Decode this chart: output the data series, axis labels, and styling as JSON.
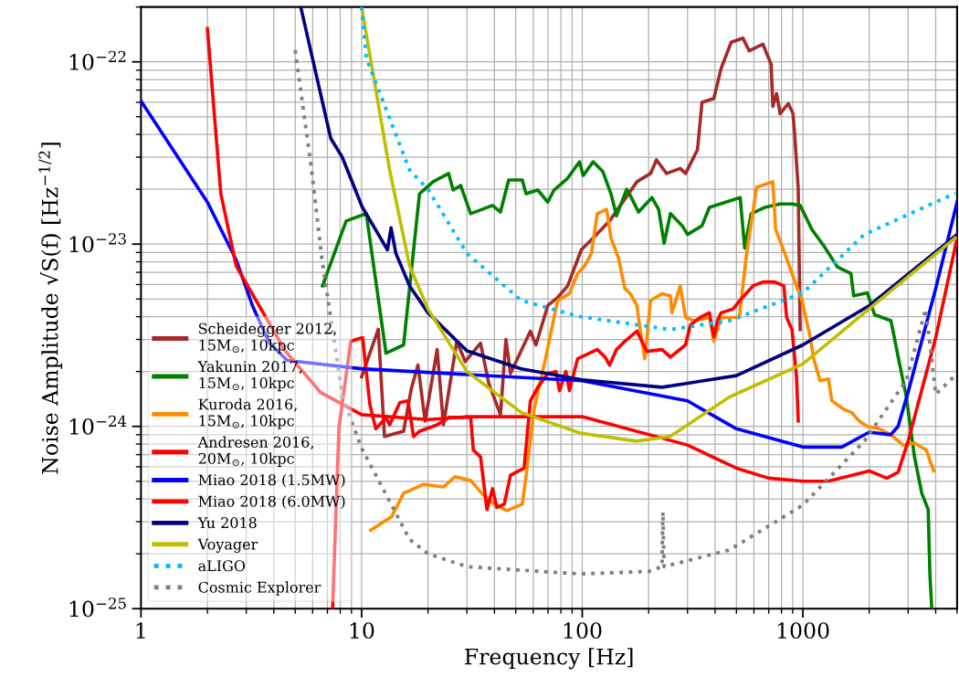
{
  "chart_data": {
    "type": "line",
    "xlabel": "Frequency [Hz]",
    "ylabel": "Noise Amplitude √S(f) [Hz$^{−1/2}$]",
    "log": "xy",
    "grid": true,
    "legend": "bottom left",
    "xlim": [
      1,
      5000
    ],
    "ylim": [
      1e-25,
      2e-22
    ],
    "xticks": [
      1,
      10,
      100,
      1000
    ],
    "yticks": [
      {
        "value": 1e-25,
        "label": "10$^{−25}$"
      },
      {
        "value": 1e-24,
        "label": "10$^{−24}$"
      },
      {
        "value": 1e-23,
        "label": "10$^{−23}$"
      },
      {
        "value": 1e-22,
        "label": "10$^{−22}$"
      }
    ],
    "series": [
      {
        "name": "Scheidegger 2012,\n15M$_{⊙}$, 10kpc",
        "color": "#a52a2a",
        "line_style": "solid",
        "x": [
          10.0,
          11.9,
          12.7,
          15.5,
          16.8,
          18.0,
          19.4,
          22.0,
          23.5,
          27.0,
          29.5,
          34.6,
          37.7,
          42.6,
          45.1,
          47.3,
          58.2,
          61.7,
          69.8,
          77.4,
          85.9,
          99,
          112,
          133,
          177,
          204,
          217,
          241,
          278,
          294,
          333,
          349,
          395,
          426,
          473,
          535,
          571,
          659,
          718,
          731,
          760,
          789,
          859,
          902,
          918,
          953,
          972
        ],
        "values": [
          1.87e-24,
          3.41e-24,
          8.8e-25,
          9.4e-25,
          1.61e-24,
          2.17e-24,
          1.07e-24,
          2.64e-24,
          1.02e-24,
          2.93e-24,
          2.27e-24,
          2.86e-24,
          1.72e-24,
          1.16e-24,
          3e-24,
          1.95e-24,
          3.33e-24,
          2.8e-24,
          4.6e-24,
          5.1e-24,
          5.9e-24,
          9.3e-24,
          1.08e-23,
          1.34e-23,
          2.2e-23,
          2.44e-23,
          2.9e-23,
          2.44e-23,
          2.6e-23,
          2.44e-23,
          3.3e-23,
          6e-23,
          6.3e-23,
          9.2e-23,
          1.28e-22,
          1.35e-22,
          1.15e-22,
          1.25e-22,
          9.7e-23,
          5.7e-23,
          6.7e-23,
          5.2e-23,
          5.9e-23,
          5.2e-23,
          4e-23,
          2e-23,
          3.4e-24
        ]
      },
      {
        "name": "Yakunin 2017,\n15M$_{⊙}$, 10kpc",
        "color": "#008000",
        "line_style": "solid",
        "x": [
          6.65,
          8.51,
          10.5,
          12.9,
          15.5,
          18.3,
          21.1,
          24.8,
          26.0,
          28.1,
          31.2,
          39.2,
          42.6,
          46.4,
          53.5,
          55.6,
          62.9,
          69.8,
          74.5,
          85.9,
          97.2,
          101,
          112,
          124,
          135,
          143,
          159,
          165,
          180,
          207,
          222,
          235,
          251,
          284,
          300,
          349,
          377,
          447,
          520,
          545,
          583,
          671,
          789,
          893,
          972,
          1100,
          1244,
          1433,
          1651,
          1700,
          1960,
          2114,
          2508,
          2705,
          2944,
          3206,
          3459,
          3698,
          3767,
          3840
        ],
        "values": [
          5.9e-24,
          1.34e-23,
          1.47e-23,
          2.52e-24,
          2.8e-24,
          1.89e-23,
          2.2e-23,
          2.44e-23,
          1.98e-23,
          2.1e-23,
          1.47e-23,
          1.63e-23,
          1.5e-23,
          2.25e-23,
          2.25e-23,
          1.89e-23,
          1.98e-23,
          1.7e-23,
          1.98e-23,
          2.3e-23,
          2.83e-23,
          2.38e-23,
          2.83e-23,
          2.5e-23,
          1.89e-23,
          1.43e-23,
          2e-23,
          1.85e-23,
          1.5e-23,
          1.8e-23,
          1.55e-23,
          1.01e-23,
          1.47e-23,
          1.26e-23,
          1.13e-23,
          1.26e-23,
          1.59e-23,
          1.7e-23,
          1.8e-23,
          9.5e-24,
          1.47e-23,
          1.59e-23,
          1.66e-23,
          1.66e-23,
          1.63e-23,
          1.2e-23,
          9.8e-24,
          7.5e-24,
          6.9e-24,
          5.2e-24,
          5.4e-24,
          4.1e-24,
          3.8e-24,
          2.4e-24,
          1.45e-24,
          6.8e-25,
          4.3e-25,
          3.5e-25,
          1.52e-25,
          1e-25
        ]
      },
      {
        "name": "Kuroda 2016,\n15M$_{⊙}$, 10kpc",
        "color": "#ff8c00",
        "line_style": "solid",
        "x": [
          11.0,
          13.7,
          15.5,
          19.0,
          23.5,
          26.5,
          31.2,
          35.3,
          39.9,
          45.5,
          53.5,
          55.6,
          60.5,
          68.4,
          74.5,
          77.4,
          87.5,
          95.3,
          103,
          110,
          117,
          129,
          135,
          146,
          156,
          165,
          177,
          183,
          192,
          204,
          230,
          251,
          255,
          278,
          294,
          321,
          377,
          395,
          426,
          515,
          556,
          617,
          731,
          753,
          828,
          893,
          991,
          1079,
          1120,
          1197,
          1304,
          1354,
          1532,
          1668,
          1799,
          1960,
          2217,
          2508,
          2837,
          3206,
          3629,
          3917
        ],
        "values": [
          2.7e-25,
          3.2e-25,
          4.3e-25,
          4.8e-25,
          4.65e-25,
          5.3e-25,
          5.05e-25,
          4.25e-25,
          3.74e-25,
          3.45e-25,
          3.74e-25,
          5.3e-25,
          1.24e-24,
          2.4e-24,
          3.96e-24,
          4.9e-24,
          5.35e-24,
          6.9e-24,
          7.65e-24,
          8.9e-24,
          1.47e-23,
          1.55e-23,
          1.08e-23,
          8.4e-24,
          5.7e-24,
          5.35e-24,
          4.6e-24,
          3.4e-24,
          2.35e-24,
          4.9e-24,
          5.35e-24,
          5.2e-24,
          4.2e-24,
          5.9e-24,
          3.96e-24,
          3.8e-24,
          3.96e-24,
          2.93e-24,
          3.96e-24,
          3.96e-24,
          8.9e-24,
          2.05e-23,
          2.2e-23,
          1.2e-23,
          8.9e-24,
          6.9e-24,
          4.9e-24,
          3.1e-24,
          2.35e-24,
          1.78e-24,
          1.82e-24,
          1.38e-24,
          1.24e-24,
          1.19e-24,
          1.07e-24,
          1e-24,
          9.7e-25,
          9e-25,
          7.9e-25,
          8.1e-25,
          7.4e-25,
          5.7e-25
        ]
      },
      {
        "name": "Andresen 2016,\n20M$_{⊙}$, 10kpc",
        "color": "#ff0000",
        "line_style": "solid",
        "x": [
          7.39,
          7.89,
          8.93,
          10.1,
          10.9,
          11.6,
          12.9,
          13.4,
          14.9,
          16.2,
          17.2,
          18.3,
          22.0,
          24.8,
          31.2,
          32.1,
          34.6,
          37.0,
          39.2,
          41.0,
          44.3,
          47.3,
          54.5,
          58.2,
          62.9,
          69.8,
          76.0,
          78.9,
          84.3,
          87.5,
          95.3,
          117,
          127,
          133,
          143,
          156,
          177,
          196,
          230,
          251,
          294,
          309,
          343,
          377,
          395,
          410,
          426,
          482,
          525,
          594,
          659,
          745,
          820,
          844,
          893,
          936,
          953
        ],
        "values": [
          1e-25,
          9.8e-25,
          2.93e-24,
          3.07e-24,
          1.32e-24,
          9.7e-25,
          1.12e-24,
          1.02e-24,
          1.35e-24,
          1.38e-24,
          8.8e-25,
          9.4e-25,
          1.02e-24,
          1.12e-24,
          1.12e-24,
          7.4e-25,
          6.8e-25,
          3.5e-25,
          4.55e-25,
          3.6e-25,
          3.74e-25,
          5.4e-25,
          5.9e-25,
          1.38e-24,
          1.64e-24,
          1.95e-24,
          2e-24,
          1.57e-24,
          2e-24,
          1.57e-24,
          2.35e-24,
          2.64e-24,
          2.4e-24,
          2.17e-24,
          2.64e-24,
          2.93e-24,
          3.33e-24,
          2.58e-24,
          2.64e-24,
          2.4e-24,
          2.8e-24,
          3.6e-24,
          3.96e-24,
          4.2e-24,
          3.1e-24,
          3.8e-24,
          4.2e-24,
          4.4e-24,
          5e-24,
          5.9e-24,
          6.2e-24,
          6.2e-24,
          5.9e-24,
          3.96e-24,
          3.4e-24,
          1.87e-24,
          1.07e-24
        ]
      },
      {
        "name": "Miao 2018 (1.5MW)",
        "color": "#0000ff",
        "line_style": "solid",
        "x": [
          1,
          2.0,
          2.7,
          3.2,
          3.8,
          4.6,
          10,
          100,
          300,
          500,
          1000,
          1500,
          2000,
          2500,
          2700,
          3000,
          4000,
          5000
        ],
        "values": [
          6.1e-23,
          1.7e-23,
          8.2e-24,
          4.6e-24,
          2.9e-24,
          2.3e-24,
          2.07e-24,
          1.78e-24,
          1.38e-24,
          9.7e-25,
          7.7e-25,
          7.7e-25,
          9.3e-25,
          9e-25,
          1e-24,
          1.54e-24,
          5.7e-24,
          1.7e-23
        ]
      },
      {
        "name": "Miao 2018 (6.0MW)",
        "color": "#ff0000",
        "line_style": "solid",
        "x": [
          2.0,
          2.3,
          2.7,
          4.5,
          6.5,
          10,
          20,
          30,
          100,
          300,
          500,
          700,
          1000,
          1300,
          2000,
          2400,
          2700,
          3000,
          4000,
          5000
        ],
        "values": [
          1.52e-22,
          1.9e-23,
          7.6e-24,
          2.6e-24,
          1.54e-24,
          1.16e-24,
          1.09e-24,
          1.13e-24,
          1.13e-24,
          7.9e-25,
          5.9e-25,
          5.2e-25,
          5e-25,
          5e-25,
          5.7e-25,
          5.2e-25,
          5.6e-25,
          8.3e-25,
          3.07e-24,
          1.08e-23
        ]
      },
      {
        "name": "Yu 2018",
        "color": "#000080",
        "line_style": "solid",
        "x": [
          5.3,
          7.25,
          8.17,
          10.06,
          13.1,
          13.6,
          14.3,
          16.5,
          20,
          30,
          53,
          100,
          230,
          500,
          1000,
          2000,
          5000
        ],
        "values": [
          2e-22,
          3.8e-23,
          3e-23,
          1.6e-23,
          9.3e-24,
          1.23e-23,
          8.9e-24,
          5.9e-24,
          4.2e-24,
          2.6e-24,
          2.07e-24,
          1.8e-24,
          1.64e-24,
          1.9e-24,
          2.8e-24,
          4.6e-24,
          1.13e-23
        ]
      },
      {
        "name": "Voyager",
        "color": "#bfbf00",
        "line_style": "solid",
        "x": [
          10,
          13.4,
          16.5,
          20,
          30,
          53,
          98,
          176,
          250,
          465,
          1000,
          1900,
          4900
        ],
        "values": [
          2e-22,
          2.55e-23,
          7.6e-24,
          4.4e-24,
          2e-24,
          1.19e-24,
          9.2e-25,
          8.3e-25,
          8.8e-25,
          1.45e-24,
          2.2e-24,
          4.2e-24,
          1.08e-23
        ]
      },
      {
        "name": "aLIGO",
        "color": "#00bfff",
        "line_style": "dotted",
        "x": [
          10,
          10.5,
          16.5,
          20,
          30,
          53,
          98,
          250,
          465,
          1000,
          1900,
          4900
        ],
        "values": [
          2e-22,
          1.05e-22,
          2.55e-23,
          2e-23,
          8.9e-24,
          4.9e-24,
          4e-24,
          3.4e-24,
          3.8e-24,
          5.4e-24,
          1.13e-23,
          1.9e-23
        ]
      },
      {
        "name": "Cosmic Explorer",
        "color": "#808080",
        "line_style": "dotted",
        "x": [
          5,
          5.9,
          6.6,
          8.2,
          10,
          16.5,
          20,
          30,
          98,
          200,
          230,
          232,
          235,
          465,
          1000,
          1900,
          2950,
          3600,
          3800,
          4000,
          4900
        ],
        "values": [
          1.16e-22,
          2.7e-23,
          8.4e-24,
          1.45e-24,
          7.6e-25,
          2.4e-25,
          2e-25,
          1.7e-25,
          1.55e-25,
          1.6e-25,
          1.7e-25,
          3.4e-25,
          1.7e-25,
          2.1e-25,
          3.7e-25,
          8.3e-25,
          1.8e-24,
          4.4e-24,
          2.6e-24,
          1.5e-24,
          1.9e-24
        ]
      }
    ]
  }
}
